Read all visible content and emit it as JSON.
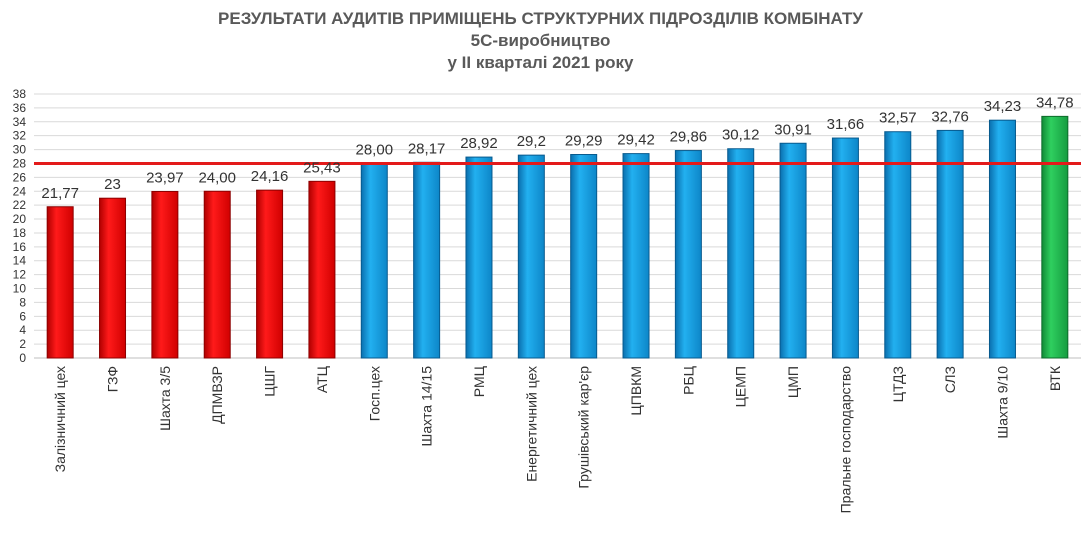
{
  "chart_data": {
    "type": "bar",
    "title": "РЕЗУЛЬТАТИ АУДИТІВ ПРИМІЩЕНЬ СТРУКТУРНИХ ПІДРОЗДІЛІВ КОМБІНАТУ",
    "subtitle": "5С-виробництво",
    "subtitle2": "у ІІ кварталі 2021 року",
    "categories": [
      "Залізничний цех",
      "ГЗФ",
      "Шахта 3/5",
      "ДПМВЗР",
      "ЦШГ",
      "АТЦ",
      "Госп.цех",
      "Шахта 14/15",
      "РМЦ",
      "Енергетичний цех",
      "Грушівський кар'єр",
      "ЦПВКМ",
      "РБЦ",
      "ЦЕМП",
      "ЦМП",
      "Пральне господарство",
      "ЦТДЗ",
      "СЛЗ",
      "Шахта 9/10",
      "ВТК"
    ],
    "values": [
      21.77,
      23,
      23.97,
      24.0,
      24.16,
      25.43,
      28.0,
      28.17,
      28.92,
      29.2,
      29.29,
      29.42,
      29.86,
      30.12,
      30.91,
      31.66,
      32.57,
      32.76,
      34.23,
      34.78
    ],
    "value_labels": [
      "21,77",
      "23",
      "23,97",
      "24,00",
      "24,16",
      "25,43",
      "28,00",
      "28,17",
      "28,92",
      "29,2",
      "29,29",
      "29,42",
      "29,86",
      "30,12",
      "30,91",
      "31,66",
      "32,57",
      "32,76",
      "34,23",
      "34,78"
    ],
    "bar_colors": [
      "#ff0000",
      "#ff0000",
      "#ff0000",
      "#ff0000",
      "#ff0000",
      "#ff0000",
      "#1a9ee0",
      "#1a9ee0",
      "#1a9ee0",
      "#1a9ee0",
      "#1a9ee0",
      "#1a9ee0",
      "#1a9ee0",
      "#1a9ee0",
      "#1a9ee0",
      "#1a9ee0",
      "#1a9ee0",
      "#1a9ee0",
      "#1a9ee0",
      "#22b14c"
    ],
    "threshold": 28,
    "threshold_color": "#e31a1a",
    "yticks": [
      "0",
      "2",
      "4",
      "6",
      "8",
      "10",
      "12",
      "14",
      "16",
      "18",
      "20",
      "22",
      "24",
      "26",
      "28",
      "30",
      "32",
      "34",
      "36",
      "38"
    ],
    "ylim": [
      0,
      38
    ],
    "grid": true,
    "xlabel": "",
    "ylabel": ""
  }
}
